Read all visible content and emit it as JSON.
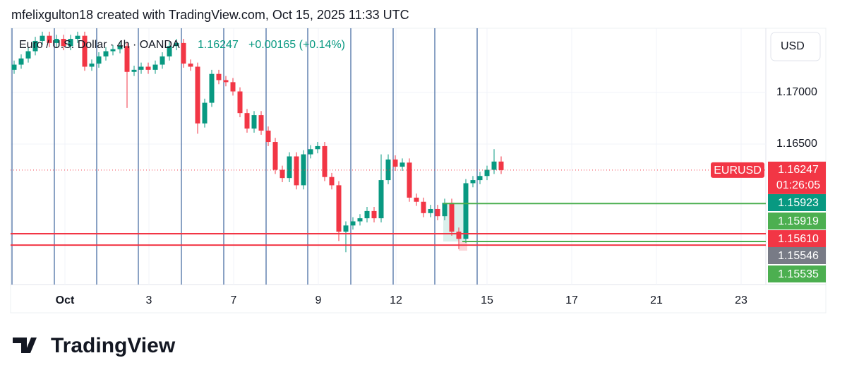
{
  "header": "mfelixgulton18 created with TradingView.com, Oct 15, 2025 11:33 UTC",
  "logo": "TradingView",
  "chart_data": {
    "type": "candlestick",
    "title": "Euro / U.S. Dollar · 4h · OANDA",
    "last": "1.16247",
    "change": "+0.00165 (+0.14%)",
    "currency": "USD",
    "symbol": "EURUSD",
    "countdown": "01:26:05",
    "up_color": "#089981",
    "down_color": "#f23645",
    "current_price": {
      "value": 1.16247,
      "label": "1.16247"
    },
    "x": [
      0,
      1,
      2,
      3,
      4,
      5,
      6,
      7,
      8,
      9,
      10,
      11,
      12,
      13,
      14,
      15,
      16,
      17,
      18,
      19,
      20,
      21,
      22,
      23,
      24,
      25,
      26,
      27,
      28,
      29,
      30,
      31,
      32,
      33,
      34,
      35,
      36,
      37,
      38,
      39,
      40,
      41,
      42,
      43,
      44,
      45,
      46,
      47,
      48,
      49,
      50,
      51,
      52,
      53,
      54,
      55,
      56,
      57,
      58,
      59,
      60,
      61,
      62,
      63,
      64,
      65,
      66,
      67,
      68,
      69
    ],
    "open": [
      1.1722,
      1.1727,
      1.1733,
      1.174,
      1.175,
      1.1755,
      1.1748,
      1.1752,
      1.1745,
      1.1752,
      1.1755,
      1.1725,
      1.1728,
      1.1735,
      1.174,
      1.1742,
      1.1745,
      1.172,
      1.1722,
      1.1725,
      1.1722,
      1.1727,
      1.1735,
      1.1745,
      1.1748,
      1.1728,
      1.1725,
      1.167,
      1.169,
      1.1718,
      1.1712,
      1.171,
      1.1701,
      1.168,
      1.1665,
      1.1678,
      1.1663,
      1.1652,
      1.1625,
      1.1617,
      1.1638,
      1.161,
      1.164,
      1.1645,
      1.1648,
      1.1618,
      1.161,
      1.1565,
      1.1571,
      1.1575,
      1.1578,
      1.1585,
      1.1578,
      1.1615,
      1.1635,
      1.1628,
      1.1632,
      1.1598,
      1.1594,
      1.1583,
      1.1587,
      1.158,
      1.1593,
      1.1565,
      1.1558,
      1.1612,
      1.1615,
      1.1619,
      1.1625,
      1.1633
    ],
    "high": [
      1.1731,
      1.1737,
      1.1744,
      1.1754,
      1.1759,
      1.1759,
      1.1756,
      1.1756,
      1.1756,
      1.1759,
      1.1759,
      1.1732,
      1.1739,
      1.1744,
      1.1746,
      1.1749,
      1.1749,
      1.1726,
      1.1729,
      1.1729,
      1.1731,
      1.1739,
      1.1749,
      1.1752,
      1.1752,
      1.1732,
      1.1729,
      1.1694,
      1.1722,
      1.1722,
      1.1716,
      1.1714,
      1.1705,
      1.1684,
      1.1682,
      1.1682,
      1.1667,
      1.1656,
      1.1629,
      1.1642,
      1.1642,
      1.1644,
      1.1649,
      1.1652,
      1.1652,
      1.1622,
      1.1614,
      1.1575,
      1.1579,
      1.1582,
      1.1589,
      1.1589,
      1.164,
      1.164,
      1.1639,
      1.1636,
      1.1636,
      1.1602,
      1.1598,
      1.1591,
      1.1591,
      1.1597,
      1.1597,
      1.1569,
      1.1616,
      1.1619,
      1.1623,
      1.1629,
      1.1645,
      1.1638
    ],
    "low": [
      1.1718,
      1.1723,
      1.1729,
      1.1736,
      1.1746,
      1.1744,
      1.1744,
      1.1741,
      1.1741,
      1.1748,
      1.1721,
      1.1721,
      1.1724,
      1.1731,
      1.1736,
      1.1738,
      1.1685,
      1.1716,
      1.1718,
      1.1718,
      1.1718,
      1.1723,
      1.1731,
      1.1741,
      1.1724,
      1.1721,
      1.166,
      1.1666,
      1.1686,
      1.1708,
      1.1706,
      1.1697,
      1.1676,
      1.1661,
      1.1661,
      1.1659,
      1.1648,
      1.1621,
      1.1613,
      1.1613,
      1.1606,
      1.1606,
      1.1636,
      1.1641,
      1.1614,
      1.1606,
      1.1556,
      1.1545,
      1.1567,
      1.1571,
      1.1574,
      1.1574,
      1.1574,
      1.1611,
      1.1624,
      1.1624,
      1.1594,
      1.159,
      1.1579,
      1.1579,
      1.1576,
      1.1576,
      1.1561,
      1.1548,
      1.1554,
      1.1608,
      1.1611,
      1.1615,
      1.1621,
      1.1621
    ],
    "close": [
      1.1727,
      1.1733,
      1.174,
      1.175,
      1.1755,
      1.1748,
      1.1752,
      1.1745,
      1.1752,
      1.1755,
      1.1725,
      1.1728,
      1.1735,
      1.174,
      1.1742,
      1.1745,
      1.172,
      1.1722,
      1.1725,
      1.1722,
      1.1727,
      1.1735,
      1.1745,
      1.1748,
      1.1728,
      1.1725,
      1.167,
      1.169,
      1.1718,
      1.1712,
      1.171,
      1.1701,
      1.168,
      1.1665,
      1.1678,
      1.1663,
      1.1652,
      1.1625,
      1.1617,
      1.1638,
      1.161,
      1.164,
      1.1645,
      1.1648,
      1.1618,
      1.161,
      1.1565,
      1.1571,
      1.1575,
      1.1578,
      1.1585,
      1.1578,
      1.1615,
      1.1635,
      1.1628,
      1.1632,
      1.1598,
      1.1594,
      1.1583,
      1.1587,
      1.158,
      1.1593,
      1.1565,
      1.1558,
      1.1612,
      1.1615,
      1.1619,
      1.1625,
      1.1633,
      1.16247
    ],
    "xlim": [
      -0.5,
      106.5
    ],
    "xticks": [
      {
        "value": 7.2,
        "label": "Oct"
      },
      {
        "value": 19.1,
        "label": "3"
      },
      {
        "value": 31.1,
        "label": "7"
      },
      {
        "value": 43.1,
        "label": "9"
      },
      {
        "value": 54.1,
        "label": "12"
      },
      {
        "value": 67,
        "label": "15"
      },
      {
        "value": 79,
        "label": "17"
      },
      {
        "value": 91,
        "label": "21"
      },
      {
        "value": 103,
        "label": "23"
      }
    ],
    "ylim": [
      1.15137,
      1.17623
    ],
    "yticks": [
      {
        "value": 1.17,
        "label": "1.17000"
      },
      {
        "value": 1.165,
        "label": "1.16500"
      }
    ],
    "grid": true,
    "hlines": [
      {
        "value": 1.1563,
        "color": "#f23645",
        "from": -0.5
      },
      {
        "value": 1.1552,
        "color": "#f23645",
        "from": -0.5
      },
      {
        "value": 1.15923,
        "color": "#4caf50",
        "from": 60.8
      },
      {
        "value": 1.15555,
        "color": "#4caf50",
        "from": 63.5
      }
    ],
    "price_labels": [
      {
        "value": 1.15923,
        "label": "1.15923",
        "color": "#089981"
      },
      {
        "value": 1.15919,
        "label": "1.15919",
        "color": "#4caf50"
      },
      {
        "value": 1.1561,
        "label": "1.15610",
        "color": "#f23645"
      },
      {
        "value": 1.15546,
        "label": "1.15546",
        "color": "#787b86"
      },
      {
        "value": 1.15535,
        "label": "1.15535",
        "color": "#4caf50"
      }
    ]
  }
}
